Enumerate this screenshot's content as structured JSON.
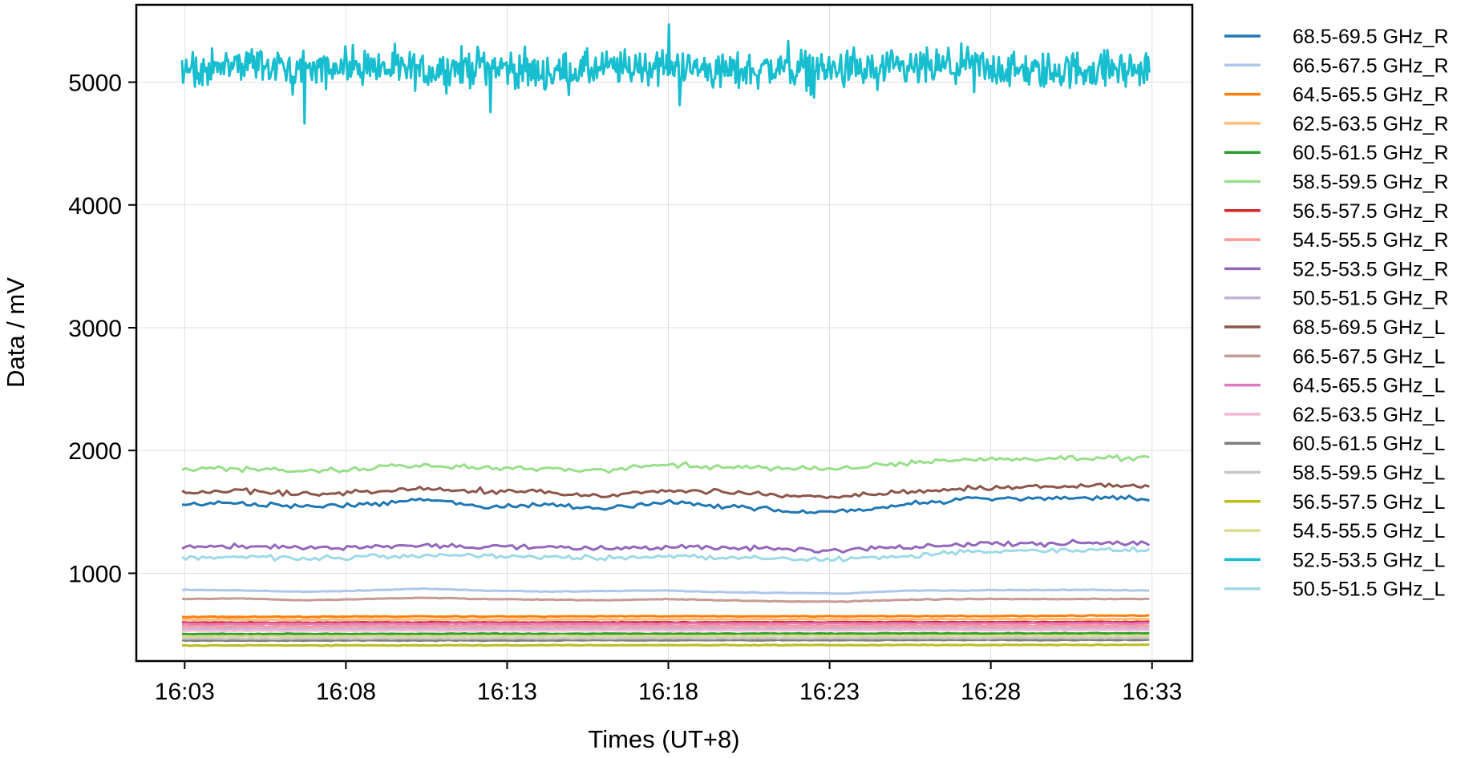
{
  "chart_data": {
    "type": "line",
    "title": "",
    "xlabel": "Times (UT+8)",
    "ylabel": "Data / mV",
    "x_ticks": [
      "16:03",
      "16:08",
      "16:13",
      "16:18",
      "16:23",
      "16:28",
      "16:33"
    ],
    "y_ticks": [
      1000,
      2000,
      3000,
      4000,
      5000
    ],
    "xlim": [
      "16:01:30",
      "16:34:15"
    ],
    "ylim": [
      285,
      5630
    ],
    "grid": true,
    "legend_position": "outside-right",
    "time_range": [
      "16:02:55",
      "16:32:55"
    ],
    "series": [
      {
        "name": "68.5-69.5 GHz_R",
        "color": "#1f77b4",
        "values": [
          1560,
          1570,
          1540,
          1560,
          1600,
          1540,
          1560,
          1530,
          1575,
          1545,
          1510,
          1505,
          1560,
          1605,
          1610,
          1610,
          1605
        ]
      },
      {
        "name": "66.5-67.5 GHz_R",
        "color": "#aec7e8",
        "values": [
          865,
          860,
          850,
          860,
          875,
          860,
          850,
          855,
          860,
          845,
          840,
          835,
          860,
          860,
          865,
          865,
          860
        ]
      },
      {
        "name": "64.5-65.5 GHz_R",
        "color": "#ff7f0e",
        "values": [
          645,
          645,
          645,
          648,
          648,
          648,
          648,
          650,
          650,
          650,
          650,
          650,
          652,
          652,
          652,
          655,
          655
        ]
      },
      {
        "name": "62.5-63.5 GHz_R",
        "color": "#ffbb78",
        "values": [
          622,
          622,
          622,
          623,
          623,
          623,
          624,
          624,
          625,
          625,
          625,
          625,
          626,
          626,
          627,
          627,
          628
        ]
      },
      {
        "name": "60.5-61.5 GHz_R",
        "color": "#2ca02c",
        "values": [
          505,
          505,
          506,
          506,
          507,
          507,
          507,
          508,
          508,
          508,
          509,
          509,
          510,
          510,
          510,
          511,
          511
        ]
      },
      {
        "name": "58.5-59.5 GHz_R",
        "color": "#98df8a",
        "values": [
          1850,
          1850,
          1835,
          1855,
          1880,
          1860,
          1850,
          1840,
          1885,
          1870,
          1850,
          1855,
          1900,
          1925,
          1935,
          1940,
          1940
        ]
      },
      {
        "name": "56.5-57.5 GHz_R",
        "color": "#d62728",
        "values": [
          598,
          598,
          598,
          599,
          599,
          599,
          600,
          600,
          600,
          601,
          601,
          601,
          602,
          602,
          602,
          603,
          603
        ]
      },
      {
        "name": "54.5-55.5 GHz_R",
        "color": "#ff9896",
        "values": [
          568,
          568,
          568,
          569,
          569,
          569,
          570,
          570,
          570,
          571,
          571,
          571,
          572,
          572,
          572,
          573,
          573
        ]
      },
      {
        "name": "52.5-53.5 GHz_R",
        "color": "#9467bd",
        "values": [
          1210,
          1215,
          1205,
          1210,
          1225,
          1215,
          1210,
          1200,
          1215,
          1205,
          1195,
          1195,
          1215,
          1235,
          1240,
          1245,
          1245
        ]
      },
      {
        "name": "50.5-51.5 GHz_R",
        "color": "#c5b0d5",
        "values": [
          548,
          548,
          548,
          549,
          549,
          549,
          550,
          550,
          550,
          551,
          551,
          551,
          552,
          552,
          552,
          553,
          553
        ]
      },
      {
        "name": "68.5-69.5 GHz_L",
        "color": "#8c564b",
        "values": [
          1660,
          1670,
          1640,
          1660,
          1695,
          1670,
          1665,
          1630,
          1675,
          1660,
          1630,
          1625,
          1660,
          1690,
          1705,
          1710,
          1710
        ]
      },
      {
        "name": "66.5-67.5 GHz_L",
        "color": "#c49c94",
        "values": [
          790,
          795,
          780,
          790,
          800,
          790,
          785,
          780,
          790,
          780,
          770,
          770,
          785,
          790,
          790,
          790,
          790
        ]
      },
      {
        "name": "64.5-65.5 GHz_L",
        "color": "#e377c2",
        "values": [
          588,
          588,
          588,
          589,
          589,
          589,
          590,
          590,
          590,
          591,
          591,
          591,
          592,
          592,
          592,
          593,
          593
        ]
      },
      {
        "name": "62.5-63.5 GHz_L",
        "color": "#f7b6d2",
        "values": [
          533,
          533,
          533,
          534,
          534,
          534,
          535,
          535,
          535,
          536,
          536,
          536,
          537,
          537,
          537,
          538,
          538
        ]
      },
      {
        "name": "60.5-61.5 GHz_L",
        "color": "#7f7f7f",
        "values": [
          452,
          452,
          452,
          453,
          453,
          453,
          454,
          454,
          454,
          455,
          455,
          455,
          456,
          456,
          456,
          457,
          457
        ]
      },
      {
        "name": "58.5-59.5 GHz_L",
        "color": "#c7c7c7",
        "values": [
          468,
          468,
          468,
          469,
          469,
          469,
          470,
          470,
          470,
          471,
          471,
          471,
          472,
          472,
          472,
          473,
          473
        ]
      },
      {
        "name": "56.5-57.5 GHz_L",
        "color": "#bcbd22",
        "values": [
          412,
          412,
          412,
          413,
          413,
          413,
          414,
          414,
          414,
          415,
          415,
          415,
          416,
          416,
          416,
          417,
          417
        ]
      },
      {
        "name": "54.5-55.5 GHz_L",
        "color": "#dbdb8d",
        "values": [
          488,
          488,
          488,
          489,
          489,
          489,
          490,
          490,
          490,
          491,
          491,
          491,
          492,
          492,
          492,
          493,
          493
        ]
      },
      {
        "name": "52.5-53.5 GHz_L",
        "color": "#17becf",
        "values": [
          5100,
          5150,
          5080,
          5120,
          5090,
          5140,
          5070,
          5110,
          5130,
          5085,
          5120,
          5095,
          5100,
          5130,
          5080,
          5110,
          5100
        ]
      },
      {
        "name": "50.5-51.5 GHz_L",
        "color": "#9edae5",
        "values": [
          1130,
          1135,
          1120,
          1130,
          1150,
          1145,
          1135,
          1120,
          1140,
          1125,
          1120,
          1115,
          1140,
          1175,
          1185,
          1190,
          1190
        ]
      }
    ]
  }
}
